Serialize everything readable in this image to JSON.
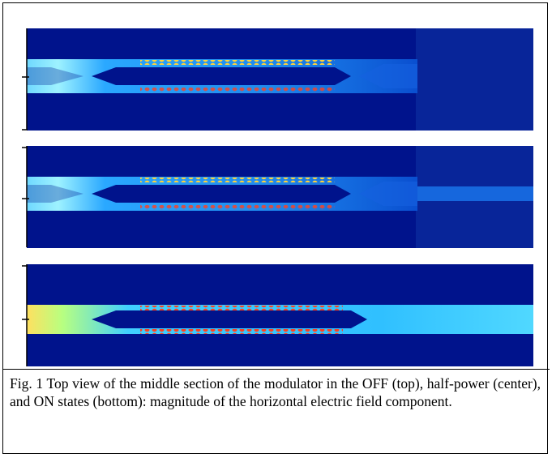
{
  "figure": {
    "caption": "Fig. 1 Top view of the middle section of the modulator in the OFF (top), half-power (center), and ON states (bottom): magnitude of the horizontal electric field component."
  }
}
